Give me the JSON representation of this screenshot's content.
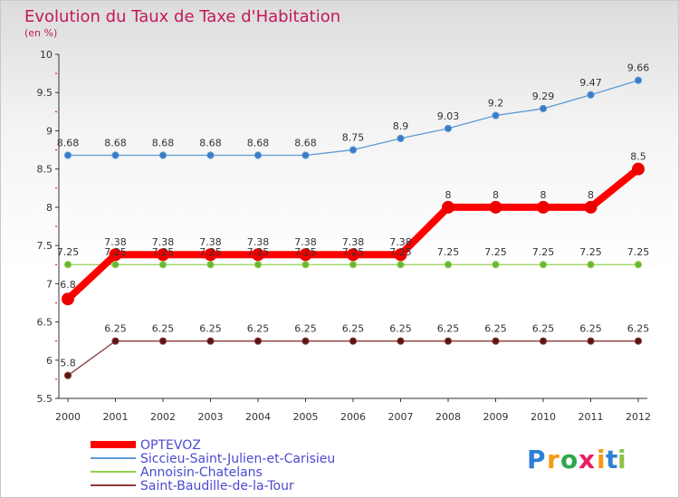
{
  "chart_data": {
    "type": "line",
    "title": "Evolution du Taux de Taxe d'Habitation",
    "subtitle": "(en %)",
    "xlabel": "",
    "ylabel": "",
    "ylim": [
      5.5,
      10
    ],
    "y_ticks": [
      "5.5",
      "6",
      "6.5",
      "7",
      "7.5",
      "8",
      "8.5",
      "9",
      "9.5",
      "10"
    ],
    "y_tick_values": [
      5.5,
      6,
      6.5,
      7,
      7.5,
      8,
      8.5,
      9,
      9.5,
      10
    ],
    "categories": [
      "2000",
      "2001",
      "2002",
      "2003",
      "2004",
      "2005",
      "2006",
      "2007",
      "2008",
      "2009",
      "2010",
      "2011",
      "2012"
    ],
    "series": [
      {
        "name": "Siccieu-Saint-Julien-et-Carisieu",
        "color": "#5b9bd5",
        "point_color": "#3a7cc4",
        "values": [
          8.68,
          8.68,
          8.68,
          8.68,
          8.68,
          8.68,
          8.75,
          8.9,
          9.03,
          9.2,
          9.29,
          9.47,
          9.66
        ],
        "labels": [
          "8.68",
          "8.68",
          "8.68",
          "8.68",
          "8.68",
          "8.68",
          "8.75",
          "8.9",
          "9.03",
          "9.2",
          "9.29",
          "9.47",
          "9.66"
        ],
        "bold": false
      },
      {
        "name": "Annoisin-Chatelans",
        "color": "#92d050",
        "point_color": "#6ab534",
        "values": [
          7.25,
          7.25,
          7.25,
          7.25,
          7.25,
          7.25,
          7.25,
          7.25,
          7.25,
          7.25,
          7.25,
          7.25,
          7.25
        ],
        "labels": [
          "7.25",
          "7.25",
          "7.25",
          "7.25",
          "7.25",
          "7.25",
          "7.25",
          "7.25",
          "7.25",
          "7.25",
          "7.25",
          "7.25",
          "7.25"
        ],
        "bold": false
      },
      {
        "name": "Saint-Baudille-de-la-Tour",
        "color": "#8b3a3a",
        "point_color": "#5a1414",
        "values": [
          5.8,
          6.25,
          6.25,
          6.25,
          6.25,
          6.25,
          6.25,
          6.25,
          6.25,
          6.25,
          6.25,
          6.25,
          6.25
        ],
        "labels": [
          "5.8",
          "6.25",
          "6.25",
          "6.25",
          "6.25",
          "6.25",
          "6.25",
          "6.25",
          "6.25",
          "6.25",
          "6.25",
          "6.25",
          "6.25"
        ],
        "bold": false
      },
      {
        "name": "OPTEVOZ",
        "color": "#ff0000",
        "point_color": "#ee0000",
        "values": [
          6.8,
          7.38,
          7.38,
          7.38,
          7.38,
          7.38,
          7.38,
          7.38,
          8,
          8,
          8,
          8,
          8.5
        ],
        "labels": [
          "6.8",
          "7.38",
          "7.38",
          "7.38",
          "7.38",
          "7.38",
          "7.38",
          "7.38",
          "8",
          "8",
          "8",
          "8",
          "8.5"
        ],
        "bold": true
      }
    ],
    "legend": {
      "placement": "bottom-left",
      "order": [
        "OPTEVOZ",
        "Siccieu-Saint-Julien-et-Carisieu",
        "Annoisin-Chatelans",
        "Saint-Baudille-de-la-Tour"
      ]
    }
  },
  "logo": {
    "text": "Proxiti",
    "letters": [
      "P",
      "r",
      "o",
      "x",
      "i",
      "t",
      "i"
    ],
    "colors": [
      "#2e7fd6",
      "#f39c12",
      "#2ea84a",
      "#e91e63",
      "#f39c12",
      "#2e7fd6",
      "#8bc34a"
    ]
  }
}
